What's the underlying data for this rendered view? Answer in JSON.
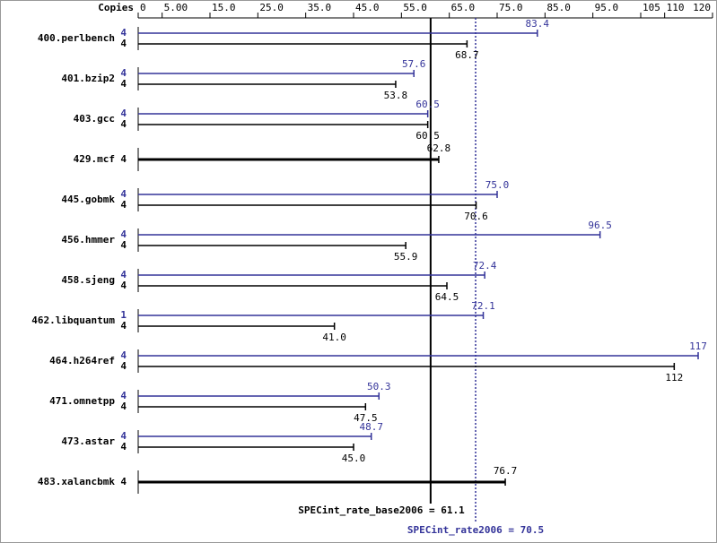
{
  "chart_data": {
    "type": "hbar-pair",
    "copies_header": "Copies",
    "categories": [
      "400.perlbench",
      "401.bzip2",
      "403.gcc",
      "429.mcf",
      "445.gobmk",
      "456.hmmer",
      "458.sjeng",
      "462.libquantum",
      "464.h264ref",
      "471.omnetpp",
      "473.astar",
      "483.xalancbmk"
    ],
    "series": [
      {
        "color": "#333399",
        "copies": [
          4,
          4,
          4,
          null,
          4,
          4,
          4,
          1,
          4,
          4,
          4,
          null
        ],
        "values": [
          83.4,
          57.6,
          60.5,
          null,
          75.0,
          96.5,
          72.4,
          72.1,
          117,
          50.3,
          48.7,
          null
        ],
        "value_labels": [
          "83.4",
          "57.6",
          "60.5",
          null,
          "75.0",
          "96.5",
          "72.4",
          "72.1",
          "117",
          "50.3",
          "48.7",
          null
        ]
      },
      {
        "color": "#000000",
        "copies": [
          4,
          4,
          4,
          4,
          4,
          4,
          4,
          4,
          4,
          4,
          4,
          4
        ],
        "values": [
          68.7,
          53.8,
          60.5,
          62.8,
          70.6,
          55.9,
          64.5,
          41.0,
          112,
          47.5,
          45.0,
          76.7
        ],
        "value_labels": [
          "68.7",
          "53.8",
          "60.5",
          "62.8",
          "70.6",
          "55.9",
          "64.5",
          "41.0",
          "112",
          "47.5",
          "45.0",
          "76.7"
        ]
      }
    ],
    "xlim": [
      0,
      120
    ],
    "xticks": [
      0,
      {
        "value": 5,
        "label": "5.00"
      },
      {
        "value": 15,
        "label": "15.0"
      },
      {
        "value": 25,
        "label": "25.0"
      },
      {
        "value": 35,
        "label": "35.0"
      },
      {
        "value": 45,
        "label": "45.0"
      },
      {
        "value": 55,
        "label": "55.0"
      },
      {
        "value": 65,
        "label": "65.0"
      },
      {
        "value": 75,
        "label": "75.0"
      },
      {
        "value": 85,
        "label": "85.0"
      },
      {
        "value": 95,
        "label": "95.0"
      },
      105,
      110,
      120
    ],
    "reference_lines": [
      {
        "value": 61.1,
        "label": "SPECint_rate_base2006 = 61.1",
        "color": "#000000",
        "style": "solid"
      },
      {
        "value": 70.5,
        "label": "SPECint_rate2006 = 70.5",
        "color": "#333399",
        "style": "dotted"
      }
    ]
  }
}
